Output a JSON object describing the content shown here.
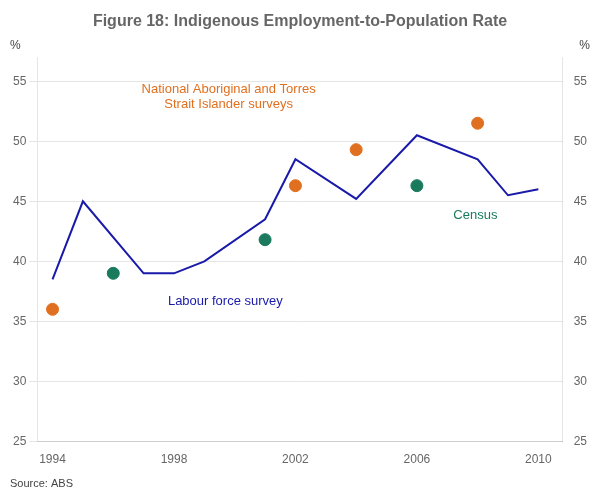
{
  "chart_data": {
    "type": "line",
    "title": "Figure 18: Indigenous Employment-to-Population Rate",
    "source": "Source: ABS",
    "ylabel": "%",
    "y2label": "%",
    "xlim": [
      1993.5,
      2010.8
    ],
    "xticks": [
      1994,
      1998,
      2002,
      2006,
      2010
    ],
    "ylim": [
      25,
      57
    ],
    "yticks": [
      25,
      30,
      35,
      40,
      45,
      50,
      55
    ],
    "y2lim": [
      25,
      57
    ],
    "y2ticks": [
      25,
      30,
      35,
      40,
      45,
      50,
      55
    ],
    "grid": "y",
    "series": [
      {
        "type": "line",
        "color": "#1a1aaa",
        "x": [
          1994,
          1995,
          1997,
          1998,
          1999,
          2001,
          2002,
          2004,
          2006,
          2008,
          2009,
          2010
        ],
        "values": [
          38.5,
          45.0,
          39.0,
          39.0,
          40.0,
          43.5,
          48.5,
          45.2,
          50.5,
          48.5,
          45.5,
          46.0
        ]
      },
      {
        "type": "scatter",
        "color": "#1a7a5e",
        "x": [
          1996,
          2001,
          2006
        ],
        "values": [
          39.0,
          41.8,
          46.3
        ]
      },
      {
        "type": "scatter",
        "color": "#e07020",
        "x": [
          1994,
          2002,
          2004,
          2008
        ],
        "values": [
          36.0,
          46.3,
          49.3,
          51.5
        ]
      }
    ],
    "annotations": [
      {
        "text": "Labour force survey",
        "x": 1997.8,
        "y": 37.2,
        "color": "#1a1aaa"
      },
      {
        "text": "National Aboriginal and Torres\nStrait Islander surveys",
        "x": 1999.8,
        "y": 52.5,
        "color": "#e07020"
      },
      {
        "text": "Census",
        "x": 2007.2,
        "y": 43.8,
        "color": "#1a7a5e"
      }
    ]
  }
}
